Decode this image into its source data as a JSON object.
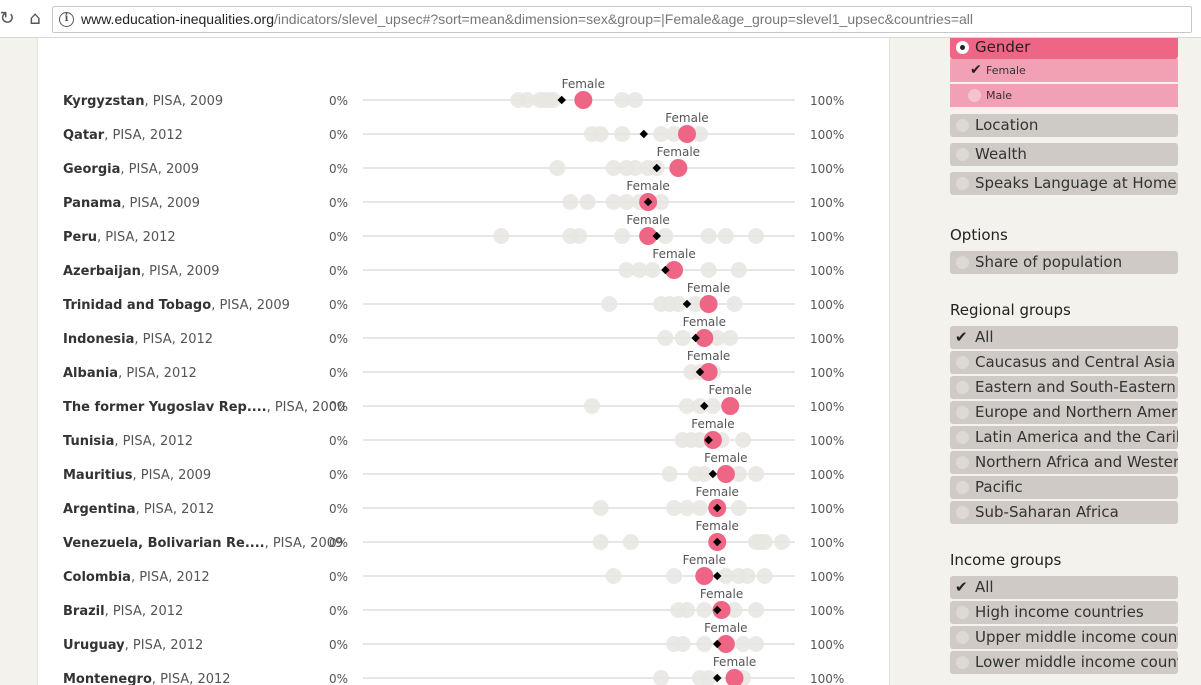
{
  "browser": {
    "url_domain": "www.education-inequalities.org",
    "url_path": "/indicators/slevel_upsec#?sort=mean&dimension=sex&group=|Female&age_group=slevel1_upsec&countries=all",
    "refresh_icon": "refresh-icon",
    "home_icon": "home-icon",
    "info_icon": "info-icon"
  },
  "chart": {
    "axis_min_label": "0%",
    "axis_max_label": "100%",
    "highlight_label": "Female",
    "colors": {
      "female": "#ee6585",
      "other": "#e8e7e2",
      "mean": "#000000",
      "line": "#cccccc"
    }
  },
  "chart_data": {
    "type": "scatter",
    "x_range": [
      0,
      100
    ],
    "rows": [
      {
        "country": "Kyrgyzstan",
        "survey": ", PISA, 2009",
        "mean": 46,
        "female": 51,
        "others": [
          36,
          38,
          41,
          42,
          43,
          44,
          60,
          63
        ]
      },
      {
        "country": "Qatar",
        "survey": ", PISA, 2012",
        "mean": 65,
        "female": 75,
        "others": [
          53,
          55,
          60,
          69,
          72,
          78
        ]
      },
      {
        "country": "Georgia",
        "survey": ", PISA, 2009",
        "mean": 68,
        "female": 73,
        "others": [
          45,
          58,
          61,
          63,
          66,
          68
        ]
      },
      {
        "country": "Panama",
        "survey": ", PISA, 2009",
        "mean": 66,
        "female": 66,
        "others": [
          48,
          52,
          58,
          61,
          64,
          69
        ]
      },
      {
        "country": "Peru",
        "survey": ", PISA, 2012",
        "mean": 68,
        "female": 66,
        "others": [
          32,
          48,
          50,
          60,
          70,
          80,
          84,
          91
        ]
      },
      {
        "country": "Azerbaijan",
        "survey": ", PISA, 2009",
        "mean": 70,
        "female": 72,
        "others": [
          61,
          64,
          67,
          72,
          80,
          87
        ]
      },
      {
        "country": "Trinidad and Tobago",
        "survey": ", PISA, 2009",
        "mean": 75,
        "female": 80,
        "others": [
          57,
          69,
          71,
          73,
          77,
          86
        ]
      },
      {
        "country": "Indonesia",
        "survey": ", PISA, 2012",
        "mean": 77,
        "female": 79,
        "others": [
          70,
          74,
          82,
          85
        ]
      },
      {
        "country": "Albania",
        "survey": ", PISA, 2012",
        "mean": 78,
        "female": 80,
        "others": [
          76,
          78,
          81
        ]
      },
      {
        "country": "The former Yugoslav Rep....",
        "survey": ", PISA, 2000",
        "mean": 79,
        "female": 85,
        "others": [
          53,
          75,
          78,
          81
        ]
      },
      {
        "country": "Tunisia",
        "survey": ", PISA, 2012",
        "mean": 80,
        "female": 81,
        "others": [
          74,
          76,
          78,
          83,
          88
        ]
      },
      {
        "country": "Mauritius",
        "survey": ", PISA, 2009",
        "mean": 81,
        "female": 84,
        "others": [
          71,
          77,
          79,
          87,
          91
        ]
      },
      {
        "country": "Argentina",
        "survey": ", PISA, 2012",
        "mean": 82,
        "female": 82,
        "others": [
          55,
          72,
          75,
          78,
          87
        ]
      },
      {
        "country": "Venezuela, Bolivarian Re....",
        "survey": ", PISA, 2009",
        "mean": 82,
        "female": 82,
        "others": [
          55,
          62,
          91,
          92,
          93,
          97
        ]
      },
      {
        "country": "Colombia",
        "survey": ", PISA, 2012",
        "mean": 82,
        "female": 79,
        "others": [
          58,
          72,
          84,
          87,
          89,
          93
        ]
      },
      {
        "country": "Brazil",
        "survey": ", PISA, 2012",
        "mean": 82,
        "female": 83,
        "others": [
          73,
          75,
          79,
          86,
          91
        ]
      },
      {
        "country": "Uruguay",
        "survey": ", PISA, 2012",
        "mean": 82,
        "female": 84,
        "others": [
          72,
          74,
          79,
          88,
          91
        ]
      },
      {
        "country": "Montenegro",
        "survey": ", PISA, 2012",
        "mean": 82,
        "female": 86,
        "others": [
          69,
          78,
          80,
          88
        ]
      }
    ]
  },
  "sidebar": {
    "gender": {
      "label": "Gender",
      "sub": [
        {
          "label": "Female",
          "checked": true
        },
        {
          "label": "Male",
          "checked": false
        }
      ]
    },
    "dimensions": [
      "Location",
      "Wealth",
      "Speaks Language at Home"
    ],
    "options_title": "Options",
    "options": [
      "Share of population"
    ],
    "regional_title": "Regional groups",
    "regional": [
      "All",
      "Caucasus and Central Asia",
      "Eastern and South-Eastern Asia",
      "Europe and Northern America",
      "Latin America and the Caribbean",
      "Northern Africa and Western Asia",
      "Pacific",
      "Sub-Saharan Africa"
    ],
    "income_title": "Income groups",
    "income": [
      "All",
      "High income countries",
      "Upper middle income countries",
      "Lower middle income countries"
    ]
  }
}
